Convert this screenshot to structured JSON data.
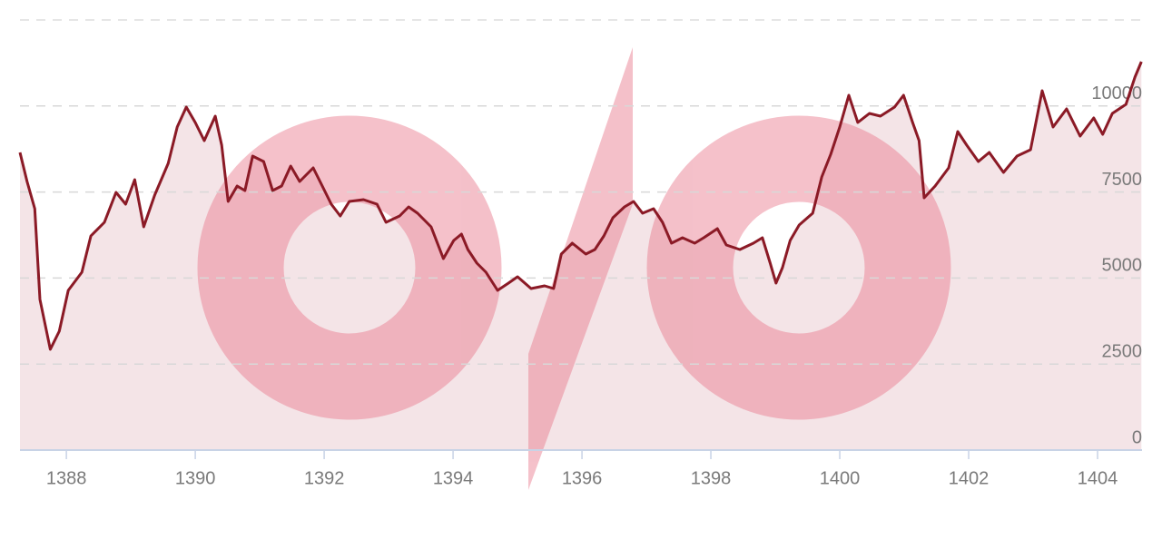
{
  "chart_data": {
    "type": "line",
    "x": [
      1387.28,
      1387.39,
      1387.51,
      1387.59,
      1387.75,
      1387.89,
      1388.03,
      1388.24,
      1388.38,
      1388.59,
      1388.77,
      1388.92,
      1389.06,
      1389.2,
      1389.37,
      1389.58,
      1389.72,
      1389.86,
      1390.0,
      1390.14,
      1390.31,
      1390.41,
      1390.51,
      1390.65,
      1390.77,
      1390.89,
      1391.06,
      1391.2,
      1391.34,
      1391.48,
      1391.62,
      1391.83,
      1391.97,
      1392.11,
      1392.25,
      1392.39,
      1392.61,
      1392.82,
      1392.96,
      1393.17,
      1393.31,
      1393.45,
      1393.66,
      1393.85,
      1394.01,
      1394.13,
      1394.23,
      1394.37,
      1394.51,
      1394.69,
      1394.86,
      1395.0,
      1395.21,
      1395.42,
      1395.56,
      1395.68,
      1395.85,
      1396.06,
      1396.2,
      1396.34,
      1396.48,
      1396.66,
      1396.8,
      1396.94,
      1397.11,
      1397.25,
      1397.39,
      1397.56,
      1397.75,
      1397.89,
      1398.1,
      1398.24,
      1398.45,
      1398.66,
      1398.8,
      1398.92,
      1399.01,
      1399.11,
      1399.23,
      1399.37,
      1399.58,
      1399.72,
      1399.86,
      1400.0,
      1400.14,
      1400.28,
      1400.46,
      1400.63,
      1400.85,
      1400.99,
      1401.13,
      1401.23,
      1401.31,
      1401.48,
      1401.69,
      1401.83,
      1401.97,
      1402.15,
      1402.32,
      1402.54,
      1402.75,
      1402.96,
      1403.14,
      1403.31,
      1403.52,
      1403.73,
      1403.94,
      1404.08,
      1404.23,
      1404.44,
      1404.58,
      1404.68
    ],
    "series": [
      {
        "color": "#8b1a26",
        "fill": "#f4e4e7",
        "values": [
          8650,
          7806,
          7015,
          4378,
          2927,
          3454,
          4641,
          5169,
          6223,
          6619,
          7489,
          7146,
          7858,
          6487,
          7410,
          8333,
          9388,
          9968,
          9520,
          8992,
          9704,
          8860,
          7225,
          7674,
          7542,
          8544,
          8386,
          7542,
          7674,
          8254,
          7806,
          8201,
          7674,
          7146,
          6804,
          7225,
          7278,
          7146,
          6619,
          6804,
          7067,
          6883,
          6487,
          5564,
          6091,
          6276,
          5828,
          5432,
          5169,
          4641,
          4852,
          5037,
          4694,
          4773,
          4694,
          5696,
          6012,
          5696,
          5828,
          6223,
          6751,
          7067,
          7225,
          6883,
          7015,
          6619,
          6012,
          6170,
          6012,
          6170,
          6434,
          5960,
          5828,
          6012,
          6170,
          5432,
          4852,
          5300,
          6091,
          6540,
          6883,
          7937,
          8597,
          9388,
          10311,
          9520,
          9784,
          9704,
          9968,
          10311,
          9520,
          8992,
          7331,
          7674,
          8201,
          9256,
          8860,
          8386,
          8650,
          8069,
          8544,
          8729,
          10443,
          9388,
          9915,
          9124,
          9651,
          9177,
          9784,
          10047,
          10838,
          11286
        ]
      }
    ],
    "xlim": [
      1387.28,
      1404.69
    ],
    "xticks": [
      1388,
      1390,
      1392,
      1394,
      1396,
      1398,
      1400,
      1402,
      1404
    ],
    "ylim": [
      0,
      12500
    ],
    "yticks": [
      0,
      2500,
      5000,
      7500,
      10000
    ],
    "grid": true
  }
}
